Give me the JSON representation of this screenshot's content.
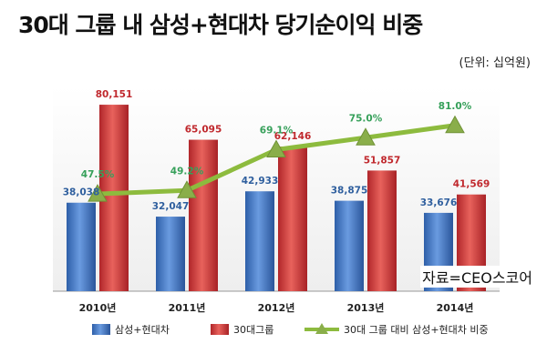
{
  "chart_data": {
    "type": "bar",
    "title": "30대 그룹 내 삼성+현대차 당기순이익 비중",
    "unit_note": "(단위: 십억원)",
    "source": "자료=CEO스코어",
    "categories": [
      "2010년",
      "2011년",
      "2012년",
      "2013년",
      "2014년"
    ],
    "series": [
      {
        "name": "삼성+현대차",
        "kind": "bar",
        "color": "#3f74c4",
        "values": [
          38038,
          32047,
          42933,
          38875,
          33676
        ],
        "labels": [
          "38,038",
          "32,047",
          "42,933",
          "38,875",
          "33,676"
        ]
      },
      {
        "name": "30대그룹",
        "kind": "bar",
        "color": "#d43a3a",
        "values": [
          80151,
          65095,
          62146,
          51857,
          41569
        ],
        "labels": [
          "80,151",
          "65,095",
          "62,146",
          "51,857",
          "41,569"
        ]
      },
      {
        "name": "30대 그룹 대비 삼성+현대차 비중",
        "kind": "line",
        "color": "#8dbb3e",
        "values": [
          47.5,
          49.2,
          69.1,
          75.0,
          81.0
        ],
        "labels": [
          "47.5%",
          "49.2%",
          "69.1%",
          "75.0%",
          "81.0%"
        ]
      }
    ],
    "ylim": [
      0,
      88000
    ],
    "y2lim": [
      0,
      100
    ],
    "label_colors": {
      "bar1": "#2f5f9e",
      "bar2": "#c0282d",
      "line": "#36a05a"
    }
  }
}
